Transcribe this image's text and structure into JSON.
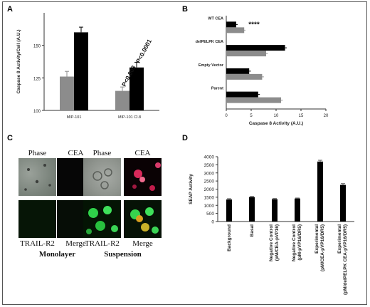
{
  "panels": {
    "a": "A",
    "b": "B",
    "c": "C",
    "d": "D"
  },
  "colors": {
    "black": "#000000",
    "gray": "#8c8c8c",
    "axis": "#333333"
  },
  "chart_data": [
    {
      "panel": "A",
      "type": "bar",
      "categories": [
        "MIP-101",
        "MIP-101 Cl.8"
      ],
      "series": [
        {
          "values": [
            126,
            115
          ],
          "errors": [
            4,
            3
          ]
        },
        {
          "values": [
            160,
            133
          ],
          "errors": [
            4,
            4
          ]
        }
      ],
      "ylabel": "Caspase 8 Activity/Cell (A.U.)",
      "ylim": [
        100,
        175
      ],
      "yticks": [
        100,
        125,
        150
      ],
      "annotations": [
        "P<0.003",
        "P<0.0001"
      ],
      "grid": false
    },
    {
      "panel": "B",
      "type": "bar",
      "orientation": "horizontal",
      "categories": [
        "WT CEA",
        "delPELPK CEA",
        "Empty Vector",
        "Parent"
      ],
      "series": [
        {
          "values": [
            2,
            11.8,
            4.6,
            6.4
          ],
          "errors": [
            0.15,
            0.2,
            0.2,
            0.2
          ]
        },
        {
          "values": [
            3.6,
            8,
            7.2,
            11
          ],
          "errors": [
            0.1,
            0.2,
            0.2,
            0.2
          ]
        }
      ],
      "xlabel": "Caspase 8 Activity (A.U.)",
      "xlim": [
        0,
        20
      ],
      "xticks": [
        0,
        5,
        10,
        15,
        20
      ],
      "annotations": [
        "****"
      ],
      "grid": false
    },
    {
      "panel": "D",
      "type": "bar",
      "categories": [
        "Background",
        "Basal",
        "Negative Control (pM/CEA-pVP16)",
        "Negative Control (pM-pVP16/DR5)",
        "Experimental (pM/CEA-pVP16/DR5)",
        "Experimental (pM/delPELPK CEA-pVP16/DR5)"
      ],
      "values": [
        1360,
        1510,
        1380,
        1420,
        3700,
        2260
      ],
      "errors": [
        50,
        40,
        40,
        30,
        80,
        80
      ],
      "ylabel": "SEAP Activity",
      "ylim": [
        0,
        4000
      ],
      "yticks": [
        0,
        500,
        1000,
        1500,
        2000,
        2500,
        3000,
        3500,
        4000
      ],
      "grid": false
    }
  ],
  "micrographs": {
    "cols": [
      "Phase",
      "CEA",
      "Phase",
      "CEA"
    ],
    "rows2": [
      "TRAIL-R2",
      "Merge",
      "TRAIL-R2",
      "Merge"
    ],
    "groups": [
      "Monolayer",
      "Suspension"
    ]
  }
}
